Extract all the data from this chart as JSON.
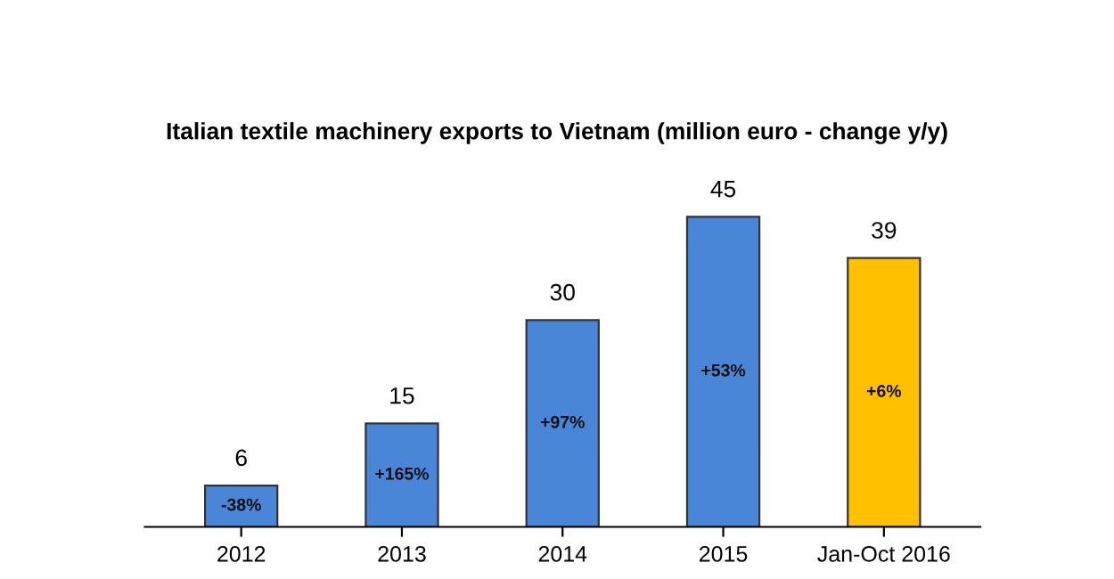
{
  "chart_data": {
    "type": "bar",
    "title": "Italian textile machinery exports to Vietnam (million euro - change y/y)",
    "categories": [
      "2012",
      "2013",
      "2014",
      "2015",
      "Jan-Oct 2016"
    ],
    "values": [
      6,
      15,
      30,
      45,
      39
    ],
    "colors": [
      "#4a86d8",
      "#4a86d8",
      "#4a86d8",
      "#4a86d8",
      "#ffc000"
    ],
    "data_labels": true,
    "annotations": [
      "-38%",
      "+165%",
      "+97%",
      "+53%",
      "+6%"
    ],
    "grid": false,
    "legend": false
  }
}
